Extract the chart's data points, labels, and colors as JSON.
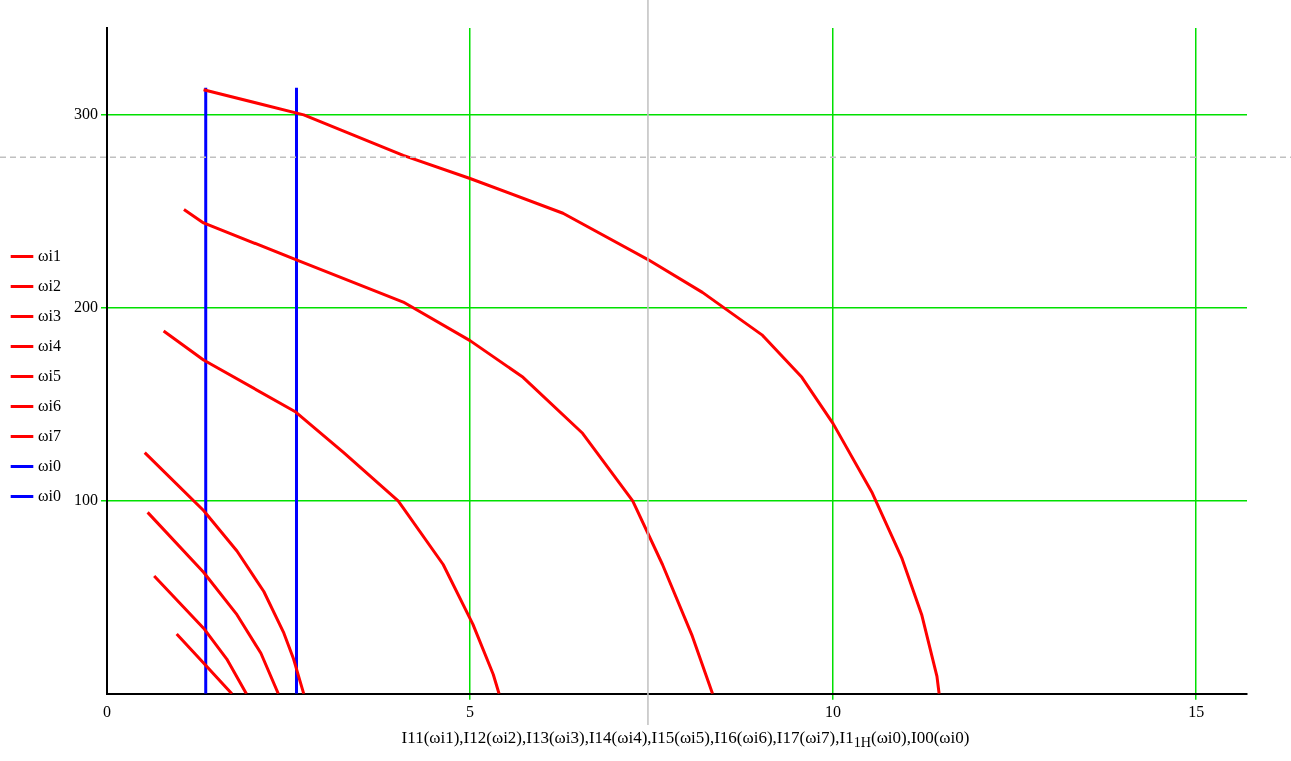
{
  "chart_data": {
    "type": "line",
    "xlabel": "I11(ωi1),I12(ωi2),I13(ωi3),I14(ωi4),I15(ωi5),I16(ωi6),I17(ωi7),I1$_{1H}$(ωi0),I00(ωi0)",
    "xlim": [
      0,
      15.7
    ],
    "xticks": [
      0,
      5,
      10,
      15
    ],
    "ylim": [
      0,
      345
    ],
    "yticks": [
      100,
      200,
      300
    ],
    "grid": true,
    "legend": "left",
    "marker": "none",
    "line_style": "solid",
    "ref_lines": [
      {
        "axis": "x",
        "value": 7.45,
        "color": "#c0c0c0",
        "line_style": "solid"
      },
      {
        "axis": "y",
        "value": 278,
        "color": "#c0c0c0",
        "line_style": "dashed"
      }
    ],
    "series": [
      {
        "name": "ωi1",
        "color": "#ff0000",
        "x": [
          1.33,
          2.71,
          4.08,
          5.0,
          6.28,
          7.45,
          8.2,
          9.02,
          9.57,
          10.0,
          10.54,
          10.95,
          11.22,
          11.43,
          11.46
        ],
        "values": [
          313,
          300,
          279,
          267,
          249,
          225,
          208,
          186,
          164,
          140,
          104,
          70,
          41,
          9,
          0
        ]
      },
      {
        "name": "ωi2",
        "color": "#ff0000",
        "x": [
          1.06,
          1.33,
          2.6,
          4.08,
          5.0,
          5.73,
          6.55,
          7.24,
          7.65,
          8.06,
          8.34
        ],
        "values": [
          251,
          244,
          225,
          203,
          183,
          164,
          135,
          100,
          67,
          30,
          0
        ]
      },
      {
        "name": "ωi3",
        "color": "#ff0000",
        "x": [
          0.78,
          1.33,
          2.6,
          3.26,
          4.01,
          4.63,
          5.04,
          5.32,
          5.4
        ],
        "values": [
          188,
          173,
          146,
          125,
          100,
          67,
          36,
          10,
          0
        ]
      },
      {
        "name": "ωi4",
        "color": "#ff0000",
        "x": [
          0.52,
          1.33,
          1.79,
          2.16,
          2.43,
          2.57,
          2.71
        ],
        "values": [
          125,
          95,
          74,
          53,
          32,
          18,
          0
        ]
      },
      {
        "name": "ωi5",
        "color": "#ff0000",
        "x": [
          0.56,
          1.33,
          1.79,
          2.12,
          2.36
        ],
        "values": [
          94,
          63,
          41,
          21,
          0
        ]
      },
      {
        "name": "ωi6",
        "color": "#ff0000",
        "x": [
          0.65,
          1.33,
          1.65,
          1.92
        ],
        "values": [
          61,
          34,
          18,
          0
        ]
      },
      {
        "name": "ωi7",
        "color": "#ff0000",
        "x": [
          0.96,
          1.33,
          1.72
        ],
        "values": [
          31,
          16,
          0
        ]
      },
      {
        "name": "ωi0",
        "color": "#0000ff",
        "x": [
          1.36,
          1.36
        ],
        "values": [
          0,
          314
        ]
      },
      {
        "name": "ωi0",
        "color": "#0000ff",
        "x": [
          2.61,
          2.61
        ],
        "values": [
          0,
          314
        ]
      }
    ]
  }
}
